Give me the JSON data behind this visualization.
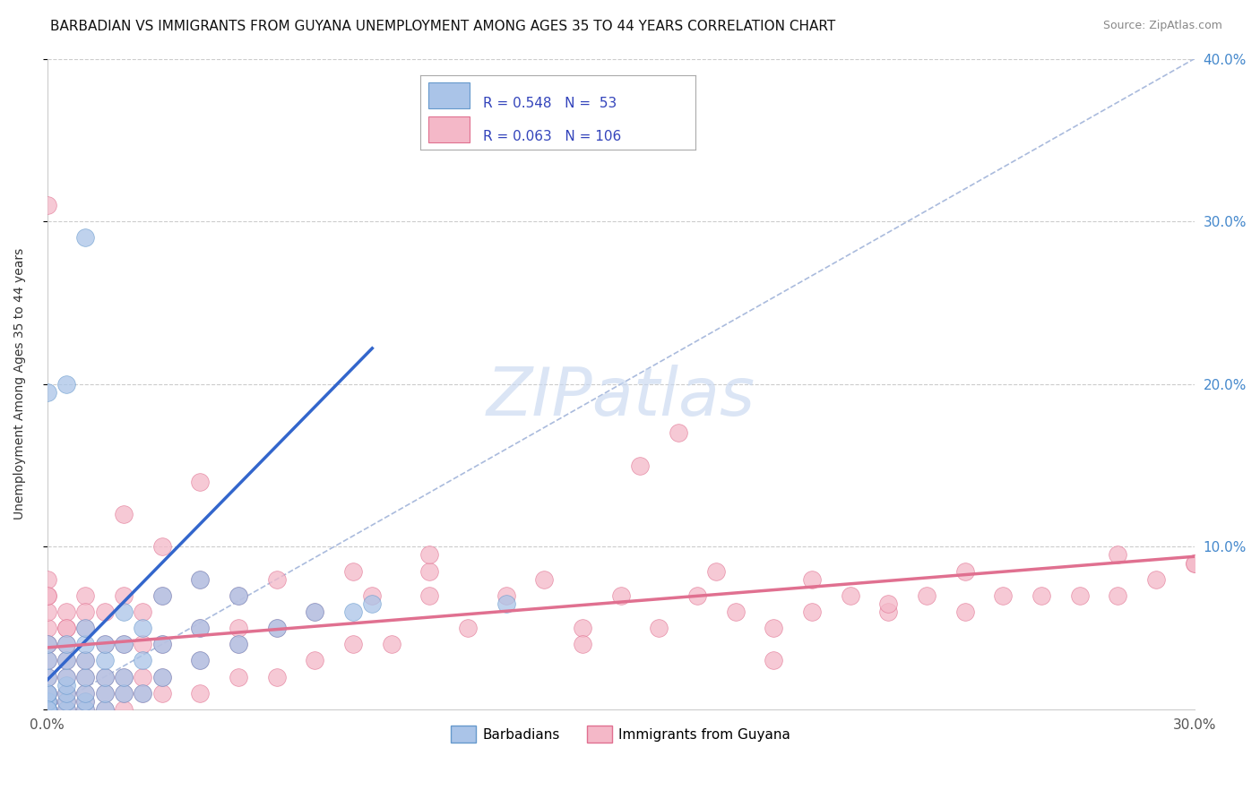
{
  "title": "BARBADIAN VS IMMIGRANTS FROM GUYANA UNEMPLOYMENT AMONG AGES 35 TO 44 YEARS CORRELATION CHART",
  "source": "Source: ZipAtlas.com",
  "ylabel": "Unemployment Among Ages 35 to 44 years",
  "xlim": [
    0.0,
    0.3
  ],
  "ylim": [
    0.0,
    0.4
  ],
  "xticks": [
    0.0,
    0.05,
    0.1,
    0.15,
    0.2,
    0.25,
    0.3
  ],
  "xticklabels": [
    "0.0%",
    "",
    "",
    "",
    "",
    "",
    "30.0%"
  ],
  "yticks": [
    0.0,
    0.1,
    0.2,
    0.3,
    0.4
  ],
  "yticklabels": [
    "",
    "10.0%",
    "20.0%",
    "30.0%",
    "40.0%"
  ],
  "grid_color": "#cccccc",
  "background_color": "#ffffff",
  "watermark": "ZIPatlas",
  "watermark_color": "#c8d8f0",
  "series": [
    {
      "label": "Barbadians",
      "color": "#aac4e8",
      "edge_color": "#6699cc",
      "R": 0.548,
      "N": 53,
      "trend_color": "#3366cc"
    },
    {
      "label": "Immigrants from Guyana",
      "color": "#f4b8c8",
      "edge_color": "#e07090",
      "R": 0.063,
      "N": 106,
      "trend_color": "#e07090"
    }
  ],
  "legend_R_color": "#3344bb",
  "title_fontsize": 11,
  "source_fontsize": 9,
  "barbadians_x": [
    0.0,
    0.0,
    0.0,
    0.0,
    0.0,
    0.0,
    0.0,
    0.0,
    0.0,
    0.0,
    0.005,
    0.005,
    0.005,
    0.005,
    0.005,
    0.005,
    0.005,
    0.01,
    0.01,
    0.01,
    0.01,
    0.01,
    0.01,
    0.01,
    0.015,
    0.015,
    0.015,
    0.015,
    0.015,
    0.02,
    0.02,
    0.02,
    0.02,
    0.025,
    0.025,
    0.025,
    0.03,
    0.03,
    0.03,
    0.04,
    0.04,
    0.04,
    0.05,
    0.05,
    0.06,
    0.07,
    0.08,
    0.005,
    0.01,
    0.0,
    0.085,
    0.12,
    0.0
  ],
  "barbadians_y": [
    0.0,
    0.0,
    0.0,
    0.005,
    0.005,
    0.01,
    0.01,
    0.02,
    0.03,
    0.04,
    0.0,
    0.005,
    0.01,
    0.015,
    0.02,
    0.03,
    0.04,
    0.0,
    0.005,
    0.01,
    0.02,
    0.03,
    0.04,
    0.05,
    0.0,
    0.01,
    0.02,
    0.03,
    0.04,
    0.01,
    0.02,
    0.04,
    0.06,
    0.01,
    0.03,
    0.05,
    0.02,
    0.04,
    0.07,
    0.03,
    0.05,
    0.08,
    0.04,
    0.07,
    0.05,
    0.06,
    0.06,
    0.2,
    0.29,
    0.195,
    0.065,
    0.065,
    0.0
  ],
  "guyana_x": [
    0.0,
    0.0,
    0.0,
    0.0,
    0.0,
    0.0,
    0.0,
    0.0,
    0.0,
    0.0,
    0.0,
    0.0,
    0.0,
    0.0,
    0.0,
    0.0,
    0.005,
    0.005,
    0.005,
    0.005,
    0.005,
    0.005,
    0.005,
    0.005,
    0.01,
    0.01,
    0.01,
    0.01,
    0.01,
    0.01,
    0.01,
    0.015,
    0.015,
    0.015,
    0.015,
    0.015,
    0.02,
    0.02,
    0.02,
    0.02,
    0.02,
    0.025,
    0.025,
    0.025,
    0.025,
    0.03,
    0.03,
    0.03,
    0.03,
    0.04,
    0.04,
    0.04,
    0.04,
    0.05,
    0.05,
    0.05,
    0.06,
    0.06,
    0.06,
    0.07,
    0.07,
    0.08,
    0.085,
    0.09,
    0.1,
    0.11,
    0.12,
    0.13,
    0.14,
    0.15,
    0.16,
    0.17,
    0.18,
    0.19,
    0.2,
    0.21,
    0.22,
    0.23,
    0.24,
    0.25,
    0.26,
    0.27,
    0.28,
    0.29,
    0.3,
    0.0,
    0.005,
    0.01,
    0.155,
    0.175,
    0.2,
    0.08,
    0.1,
    0.14,
    0.02,
    0.03,
    0.04,
    0.24,
    0.28,
    0.0,
    0.19,
    0.22,
    0.3,
    0.05,
    0.165,
    0.1
  ],
  "guyana_y": [
    0.0,
    0.0,
    0.0,
    0.0,
    0.005,
    0.005,
    0.01,
    0.01,
    0.02,
    0.03,
    0.04,
    0.05,
    0.06,
    0.07,
    0.08,
    0.31,
    0.0,
    0.005,
    0.01,
    0.02,
    0.03,
    0.04,
    0.05,
    0.06,
    0.0,
    0.005,
    0.01,
    0.02,
    0.03,
    0.05,
    0.07,
    0.0,
    0.01,
    0.02,
    0.04,
    0.06,
    0.0,
    0.01,
    0.02,
    0.04,
    0.07,
    0.01,
    0.02,
    0.04,
    0.06,
    0.01,
    0.02,
    0.04,
    0.07,
    0.01,
    0.03,
    0.05,
    0.08,
    0.02,
    0.04,
    0.07,
    0.02,
    0.05,
    0.08,
    0.03,
    0.06,
    0.04,
    0.07,
    0.04,
    0.07,
    0.05,
    0.07,
    0.08,
    0.05,
    0.07,
    0.05,
    0.07,
    0.06,
    0.05,
    0.06,
    0.07,
    0.06,
    0.07,
    0.06,
    0.07,
    0.07,
    0.07,
    0.07,
    0.08,
    0.09,
    0.04,
    0.05,
    0.06,
    0.15,
    0.085,
    0.08,
    0.085,
    0.085,
    0.04,
    0.12,
    0.1,
    0.14,
    0.085,
    0.095,
    0.07,
    0.03,
    0.065,
    0.09,
    0.05,
    0.17,
    0.095
  ]
}
